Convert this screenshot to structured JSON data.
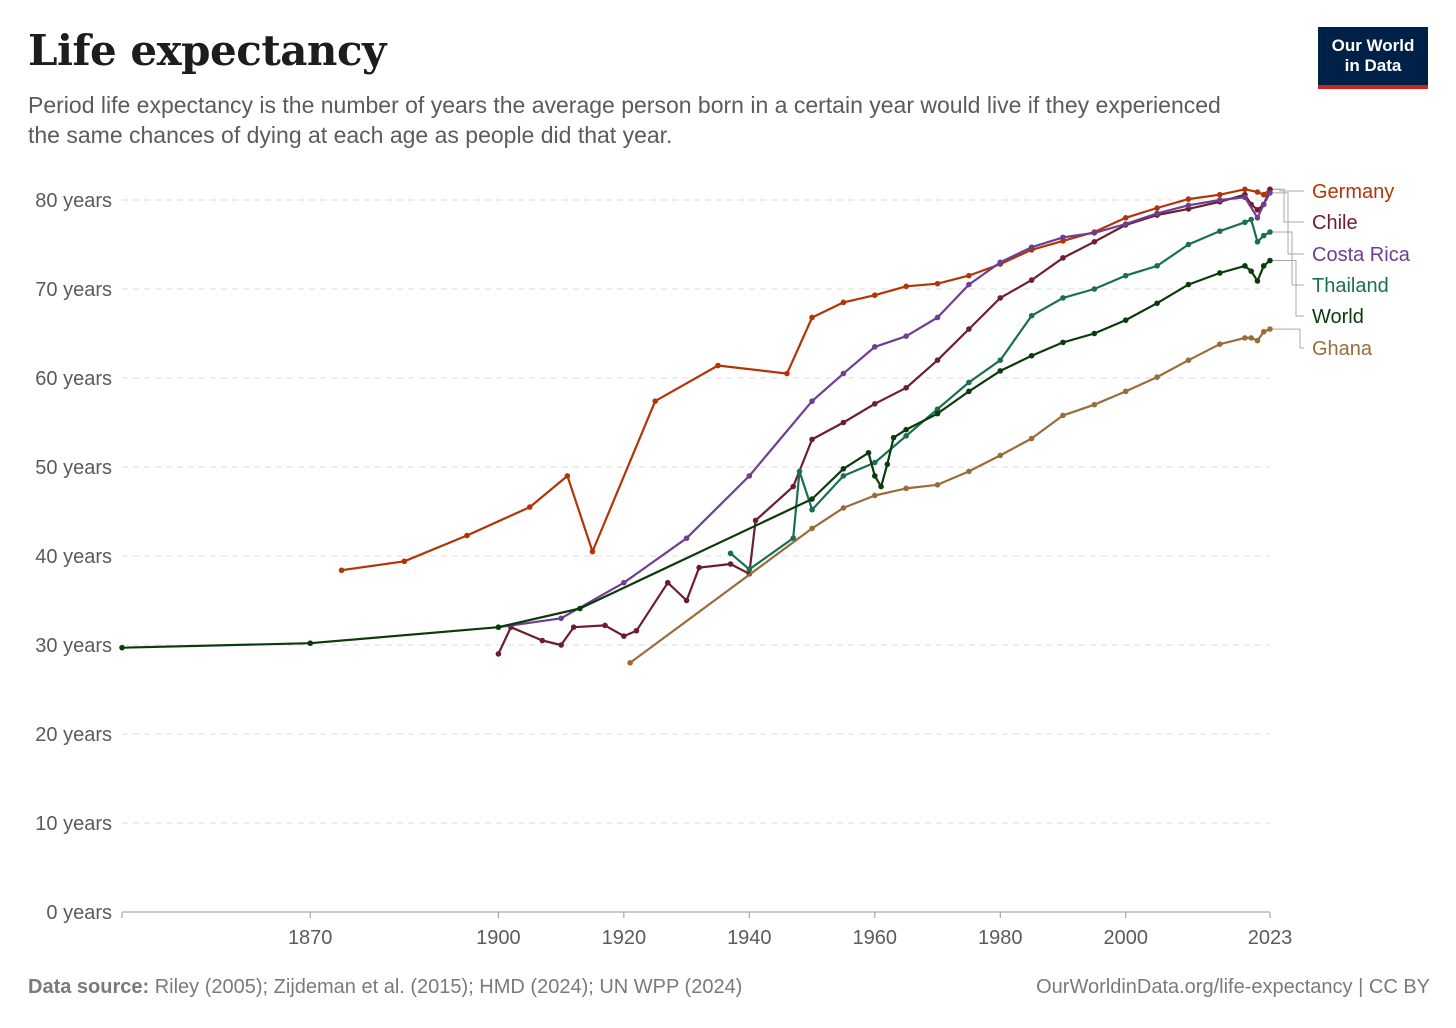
{
  "header": {
    "title": "Life expectancy",
    "subtitle": "Period life expectancy is the number of years the average person born in a certain year would live if they experienced the same chances of dying at each age as people did that year.",
    "logo_line1": "Our World",
    "logo_line2": "in Data"
  },
  "footer": {
    "source_label": "Data source:",
    "source_text": "Riley (2005); Zijdeman et al. (2015); HMD (2024); UN WPP (2024)",
    "url": "OurWorldinData.org/life-expectancy",
    "license": "CC BY"
  },
  "colors": {
    "Germany": "#b13507",
    "Chile": "#6d1e2e",
    "Costa Rica": "#6d3e91",
    "Thailand": "#18704f",
    "World": "#0b3a0b",
    "Ghana": "#996d39",
    "grid": "#dddddd",
    "axis": "#5b5b5b",
    "logo_bg": "#002147",
    "logo_accent": "#ce261e"
  },
  "chart_data": {
    "type": "line",
    "title": "Life expectancy",
    "xlim": [
      1840,
      2023
    ],
    "ylim": [
      0,
      80
    ],
    "x_ticks": [
      1870,
      1900,
      1920,
      1940,
      1960,
      1980,
      2000,
      2023
    ],
    "y_ticks": [
      0,
      10,
      20,
      30,
      40,
      50,
      60,
      70,
      80
    ],
    "y_tick_labels": [
      "0 years",
      "10 years",
      "20 years",
      "30 years",
      "40 years",
      "50 years",
      "60 years",
      "70 years",
      "80 years"
    ],
    "grid": "horizontal dashed",
    "legend": "right (line-end labels)",
    "series": [
      {
        "name": "Germany",
        "points": [
          [
            1875,
            38.4
          ],
          [
            1885,
            39.4
          ],
          [
            1895,
            42.3
          ],
          [
            1905,
            45.5
          ],
          [
            1911,
            49.0
          ],
          [
            1915,
            40.5
          ],
          [
            1925,
            57.4
          ],
          [
            1935,
            61.4
          ],
          [
            1946,
            60.5
          ],
          [
            1950,
            66.8
          ],
          [
            1955,
            68.5
          ],
          [
            1960,
            69.3
          ],
          [
            1965,
            70.3
          ],
          [
            1970,
            70.6
          ],
          [
            1975,
            71.5
          ],
          [
            1980,
            72.8
          ],
          [
            1985,
            74.4
          ],
          [
            1990,
            75.4
          ],
          [
            1995,
            76.4
          ],
          [
            2000,
            78.0
          ],
          [
            2005,
            79.1
          ],
          [
            2010,
            80.1
          ],
          [
            2015,
            80.6
          ],
          [
            2019,
            81.2
          ],
          [
            2021,
            80.9
          ],
          [
            2022,
            80.6
          ],
          [
            2023,
            81.2
          ]
        ]
      },
      {
        "name": "Chile",
        "points": [
          [
            1900,
            29.0
          ],
          [
            1902,
            32.0
          ],
          [
            1907,
            30.5
          ],
          [
            1910,
            30.0
          ],
          [
            1912,
            32.0
          ],
          [
            1917,
            32.2
          ],
          [
            1920,
            31.0
          ],
          [
            1922,
            31.6
          ],
          [
            1927,
            37.0
          ],
          [
            1930,
            35.0
          ],
          [
            1932,
            38.7
          ],
          [
            1937,
            39.1
          ],
          [
            1940,
            38.0
          ],
          [
            1941,
            44.0
          ],
          [
            1947,
            47.8
          ],
          [
            1950,
            53.1
          ],
          [
            1955,
            55.0
          ],
          [
            1960,
            57.1
          ],
          [
            1965,
            58.9
          ],
          [
            1970,
            62.0
          ],
          [
            1975,
            65.5
          ],
          [
            1980,
            69.0
          ],
          [
            1985,
            71.0
          ],
          [
            1990,
            73.5
          ],
          [
            1995,
            75.3
          ],
          [
            2000,
            77.2
          ],
          [
            2005,
            78.3
          ],
          [
            2010,
            79.0
          ],
          [
            2015,
            79.8
          ],
          [
            2019,
            80.6
          ],
          [
            2020,
            79.5
          ],
          [
            2021,
            78.9
          ],
          [
            2022,
            79.5
          ],
          [
            2023,
            81.2
          ]
        ]
      },
      {
        "name": "Costa Rica",
        "points": [
          [
            1900,
            32.0
          ],
          [
            1910,
            33.0
          ],
          [
            1920,
            37.0
          ],
          [
            1930,
            42.0
          ],
          [
            1940,
            49.0
          ],
          [
            1950,
            57.4
          ],
          [
            1955,
            60.5
          ],
          [
            1960,
            63.5
          ],
          [
            1965,
            64.7
          ],
          [
            1970,
            66.8
          ],
          [
            1975,
            70.5
          ],
          [
            1980,
            73.0
          ],
          [
            1985,
            74.7
          ],
          [
            1990,
            75.8
          ],
          [
            1995,
            76.3
          ],
          [
            2000,
            77.3
          ],
          [
            2005,
            78.5
          ],
          [
            2010,
            79.4
          ],
          [
            2015,
            80.0
          ],
          [
            2019,
            80.3
          ],
          [
            2021,
            78.0
          ],
          [
            2022,
            79.5
          ],
          [
            2023,
            80.8
          ]
        ]
      },
      {
        "name": "Thailand",
        "points": [
          [
            1937,
            40.3
          ],
          [
            1940,
            38.5
          ],
          [
            1947,
            42.0
          ],
          [
            1948,
            49.5
          ],
          [
            1950,
            45.2
          ],
          [
            1955,
            49.0
          ],
          [
            1960,
            50.5
          ],
          [
            1965,
            53.5
          ],
          [
            1970,
            56.5
          ],
          [
            1975,
            59.5
          ],
          [
            1980,
            62.0
          ],
          [
            1985,
            67.0
          ],
          [
            1990,
            69.0
          ],
          [
            1995,
            70.0
          ],
          [
            2000,
            71.5
          ],
          [
            2005,
            72.6
          ],
          [
            2010,
            75.0
          ],
          [
            2015,
            76.5
          ],
          [
            2019,
            77.5
          ],
          [
            2020,
            77.8
          ],
          [
            2021,
            75.3
          ],
          [
            2022,
            76.0
          ],
          [
            2023,
            76.4
          ]
        ]
      },
      {
        "name": "World",
        "points": [
          [
            1840,
            29.7
          ],
          [
            1870,
            30.2
          ],
          [
            1900,
            32.0
          ],
          [
            1913,
            34.1
          ],
          [
            1950,
            46.4
          ],
          [
            1955,
            49.8
          ],
          [
            1959,
            51.6
          ],
          [
            1960,
            49.0
          ],
          [
            1961,
            47.8
          ],
          [
            1962,
            50.3
          ],
          [
            1963,
            53.3
          ],
          [
            1965,
            54.2
          ],
          [
            1970,
            56.0
          ],
          [
            1975,
            58.5
          ],
          [
            1980,
            60.8
          ],
          [
            1985,
            62.5
          ],
          [
            1990,
            64.0
          ],
          [
            1995,
            65.0
          ],
          [
            2000,
            66.5
          ],
          [
            2005,
            68.4
          ],
          [
            2010,
            70.5
          ],
          [
            2015,
            71.8
          ],
          [
            2019,
            72.6
          ],
          [
            2020,
            72.0
          ],
          [
            2021,
            70.9
          ],
          [
            2022,
            72.6
          ],
          [
            2023,
            73.2
          ]
        ]
      },
      {
        "name": "Ghana",
        "points": [
          [
            1921,
            28.0
          ],
          [
            1950,
            43.1
          ],
          [
            1955,
            45.4
          ],
          [
            1960,
            46.8
          ],
          [
            1965,
            47.6
          ],
          [
            1970,
            48.0
          ],
          [
            1975,
            49.5
          ],
          [
            1980,
            51.3
          ],
          [
            1985,
            53.2
          ],
          [
            1990,
            55.8
          ],
          [
            1995,
            57.0
          ],
          [
            2000,
            58.5
          ],
          [
            2005,
            60.1
          ],
          [
            2010,
            62.0
          ],
          [
            2015,
            63.8
          ],
          [
            2019,
            64.5
          ],
          [
            2020,
            64.5
          ],
          [
            2021,
            64.2
          ],
          [
            2022,
            65.2
          ],
          [
            2023,
            65.5
          ]
        ]
      }
    ]
  }
}
